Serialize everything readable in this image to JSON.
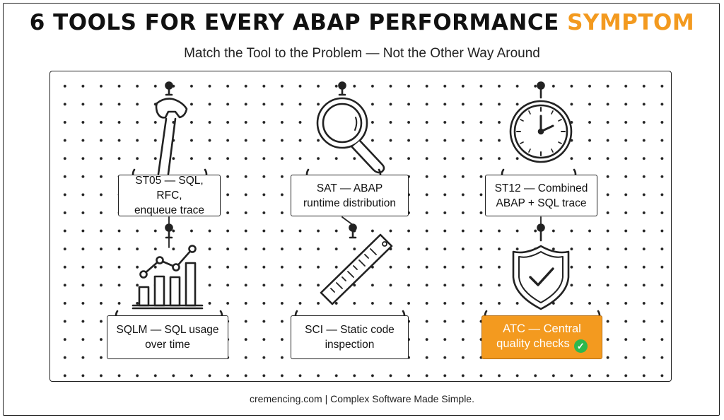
{
  "header": {
    "title_main": "6 TOOLS FOR EVERY ABAP PERFORMANCE",
    "title_accent": "SYMPTOM",
    "subtitle": "Match the Tool to the Problem — Not the Other Way Around"
  },
  "colors": {
    "accent": "#f39a1f",
    "check_badge": "#2db84d",
    "line": "#222222"
  },
  "tools": [
    {
      "line1": "ST05 — SQL, RFC,",
      "line2": "enqueue trace",
      "icon": "wrench-icon"
    },
    {
      "line1": "SAT — ABAP",
      "line2": "runtime distribution",
      "icon": "magnifier-icon"
    },
    {
      "line1": "ST12 — Combined",
      "line2": "ABAP + SQL trace",
      "icon": "clock-icon"
    },
    {
      "line1": "SQLM — SQL usage",
      "line2": "over time",
      "icon": "bar-chart-icon"
    },
    {
      "line1": "SCI — Static code",
      "line2": "inspection",
      "icon": "ruler-icon"
    },
    {
      "line1": "ATC — Central",
      "line2": "quality checks",
      "icon": "shield-check-icon",
      "highlighted": true
    }
  ],
  "footer": {
    "text": "cremencing.com | Complex Software Made Simple."
  }
}
